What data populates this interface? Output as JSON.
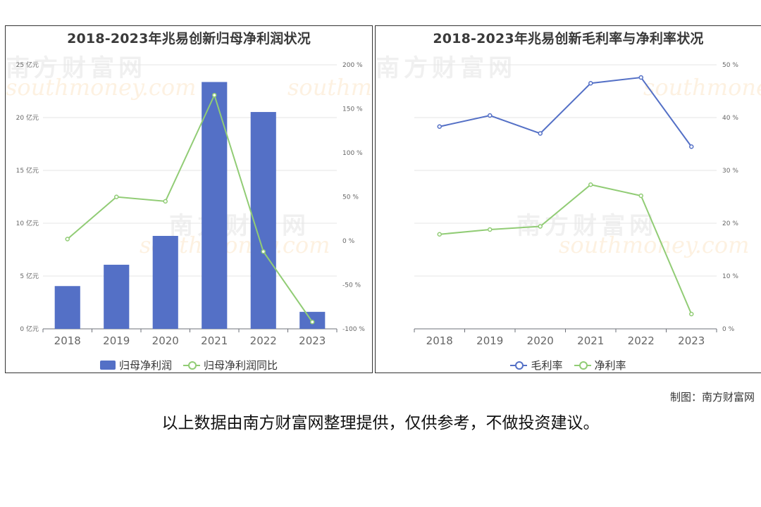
{
  "watermark": {
    "cn": "南方财富网",
    "en": "southmoney.com"
  },
  "credit": "制图：南方财富网",
  "disclaimer": "以上数据由南方财富网整理提供，仅供参考，不做投资建议。",
  "chart_data": [
    {
      "type": "bar",
      "title": "2018-2023年兆易创新归母净利润状况",
      "categories": [
        "2018",
        "2019",
        "2020",
        "2021",
        "2022",
        "2023"
      ],
      "xlabel": "",
      "ylabel": "",
      "ylim": [
        0,
        25
      ],
      "y_ticks": [
        "0 亿元",
        "5 亿元",
        "10 亿元",
        "15 亿元",
        "20 亿元",
        "25 亿元"
      ],
      "y2lim": [
        -100,
        200
      ],
      "y2_ticks": [
        "-100 %",
        "-50 %",
        "0 %",
        "50 %",
        "100 %",
        "150 %",
        "200 %"
      ],
      "grid": true,
      "legend_position": "bottom",
      "series": [
        {
          "name": "归母净利润",
          "type": "bar",
          "axis": "left",
          "color": "#5470c6",
          "values": [
            4.05,
            6.07,
            8.8,
            23.37,
            20.53,
            1.61
          ]
        },
        {
          "name": "归母净利润同比",
          "type": "line",
          "axis": "right",
          "color": "#91cc75",
          "values": [
            2.0,
            49.9,
            44.9,
            165.5,
            -12.2,
            -92.2
          ]
        }
      ]
    },
    {
      "type": "line",
      "title": "2018-2023年兆易创新毛利率与净利率状况",
      "categories": [
        "2018",
        "2019",
        "2020",
        "2021",
        "2022",
        "2023"
      ],
      "xlabel": "",
      "ylabel": "",
      "y2lim": [
        0,
        50
      ],
      "y2_ticks": [
        "0 %",
        "10 %",
        "20 %",
        "30 %",
        "40 %",
        "50 %"
      ],
      "grid": true,
      "legend_position": "bottom",
      "series": [
        {
          "name": "毛利率",
          "axis": "right",
          "color": "#5470c6",
          "values": [
            38.3,
            40.4,
            37.0,
            46.5,
            47.6,
            34.5
          ]
        },
        {
          "name": "净利率",
          "axis": "right",
          "color": "#91cc75",
          "values": [
            17.9,
            18.8,
            19.4,
            27.3,
            25.2,
            2.8
          ]
        }
      ]
    }
  ]
}
